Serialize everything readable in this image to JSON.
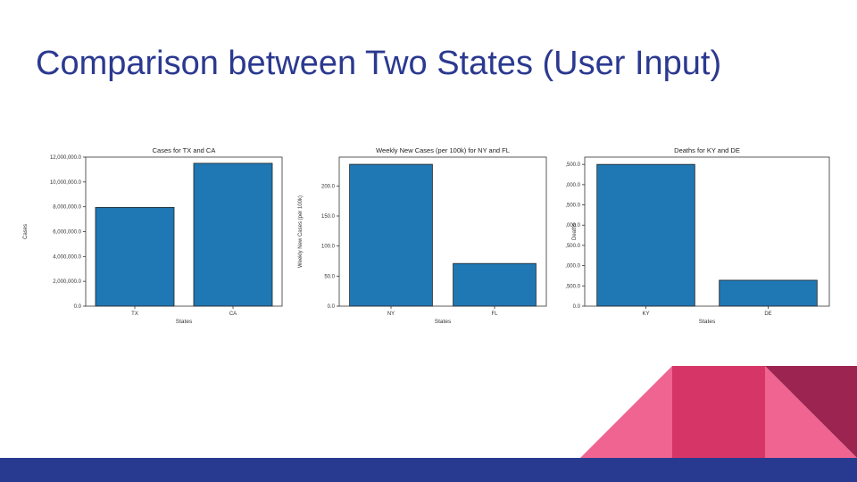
{
  "slide": {
    "title": "Comparison between Two States (User Input)",
    "colors": {
      "title": "#2b3990",
      "footer_bar": "#283a8f",
      "shape_pink": "#f06491",
      "shape_magenta": "#d63568",
      "shape_dark": "#9c2450",
      "bar": "#1f77b4"
    }
  },
  "chart_data": [
    {
      "type": "bar",
      "title": "Cases for TX and CA",
      "xlabel": "States",
      "ylabel": "Cases",
      "categories": [
        "TX",
        "CA"
      ],
      "values": [
        7950000,
        11500000
      ],
      "ylim": [
        0,
        12000000
      ],
      "yticks": [
        0,
        2000000,
        4000000,
        6000000,
        8000000,
        10000000,
        12000000
      ],
      "yticklabels": [
        "0.0",
        "2,000,000.0",
        "4,000,000.0",
        "6,000,000.0",
        "8,000,000.0",
        "10,000,000.0",
        "12,000,000.0"
      ],
      "grid": false
    },
    {
      "type": "bar",
      "title": "Weekly New Cases (per 100k) for NY and FL",
      "xlabel": "States",
      "ylabel": "Weekly New Cases (per 100k)",
      "categories": [
        "NY",
        "FL"
      ],
      "values": [
        236,
        71
      ],
      "ylim": [
        0,
        248
      ],
      "yticks": [
        0,
        50,
        100,
        150,
        200
      ],
      "yticklabels": [
        "0.0",
        "50.0",
        "100.0",
        "150.0",
        "200.0"
      ],
      "grid": false
    },
    {
      "type": "bar",
      "title": "Deaths for KY and DE",
      "xlabel": "States",
      "ylabel": "Deaths",
      "categories": [
        "KY",
        "DE"
      ],
      "values": [
        17500,
        3200
      ],
      "ylim": [
        0,
        18400
      ],
      "yticks": [
        0,
        2500,
        5000,
        7500,
        10000,
        12500,
        15000,
        17500
      ],
      "yticklabels": [
        "0.0",
        "2,500.0",
        "5,000.0",
        "7,500.0",
        "10,000.0",
        "12,500.0",
        "15,000.0",
        "17,500.0"
      ],
      "grid": false
    }
  ]
}
